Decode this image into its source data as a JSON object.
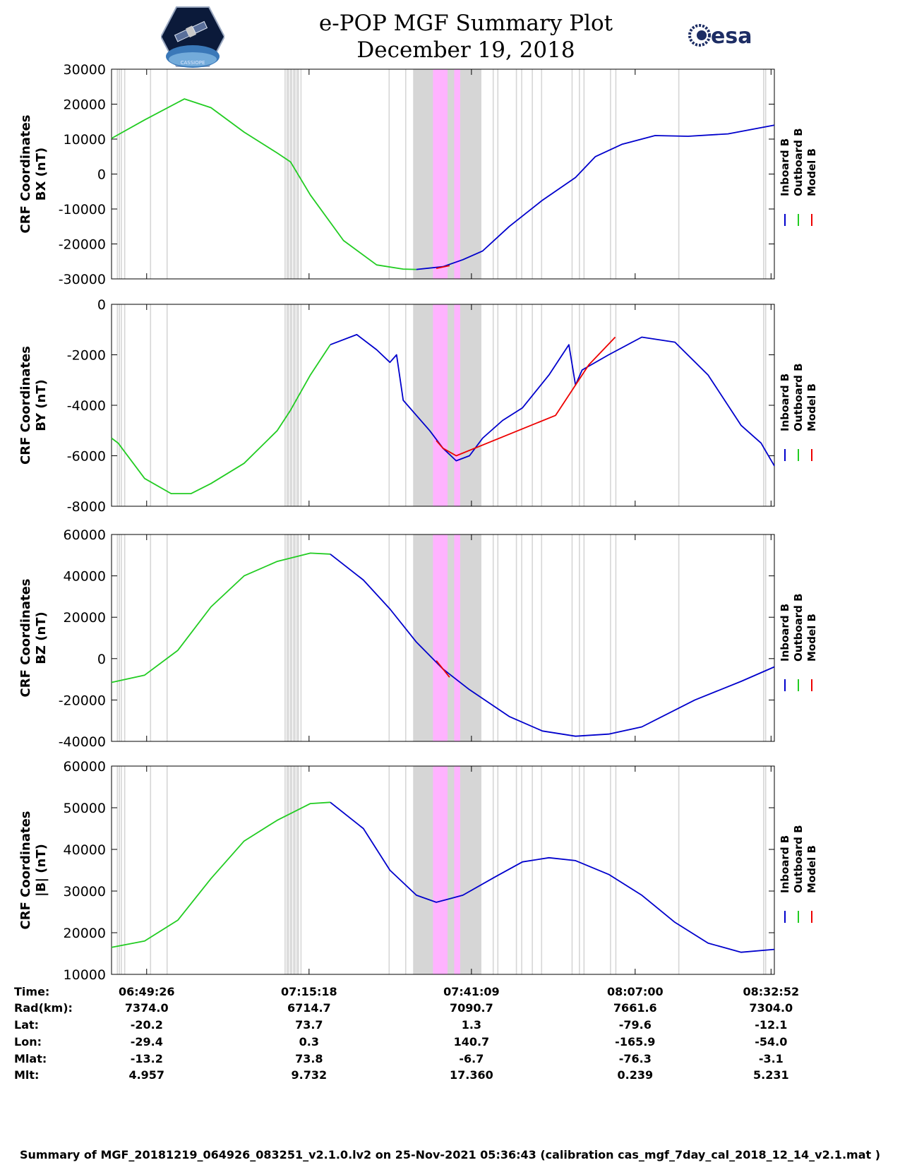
{
  "header": {
    "title_line1": "e-POP MGF Summary Plot",
    "title_line2": "December 19, 2018",
    "logo_left_text": "CASSIOPE",
    "logo_right_text": "esa"
  },
  "colors": {
    "inboard": "#0000cc",
    "outboard": "#22cc22",
    "model": "#ee0000",
    "gap_shade": "#d6d6d6",
    "event_shade": "#ffb3ff"
  },
  "legend": {
    "labels": [
      "Inboard B",
      "Outboard B",
      "Model B"
    ]
  },
  "chart_data": [
    {
      "type": "line",
      "title": "",
      "ylabel": [
        "CRF Coordinates",
        "BX (nT)"
      ],
      "ylim": [
        -30000,
        30000
      ],
      "yticks": [
        "30000",
        "20000",
        "10000",
        "0",
        "-10000",
        "-20000",
        "-30000"
      ],
      "series": [
        {
          "name": "Outboard B",
          "x": [
            0,
            0.05,
            0.11,
            0.15,
            0.2,
            0.25,
            0.27,
            0.3,
            0.35,
            0.4,
            0.44,
            0.46
          ],
          "values": [
            10200,
            15500,
            21500,
            19000,
            12000,
            6000,
            3500,
            -6000,
            -19000,
            -26000,
            -27200,
            -27300
          ]
        },
        {
          "name": "Inboard B",
          "x": [
            0.46,
            0.5,
            0.53,
            0.56,
            0.6,
            0.65,
            0.7,
            0.73,
            0.77,
            0.82,
            0.87,
            0.93,
            1.0
          ],
          "values": [
            -27300,
            -26500,
            -24500,
            -22000,
            -15000,
            -7500,
            -1000,
            5000,
            8500,
            11000,
            10800,
            11500,
            14000
          ]
        },
        {
          "name": "Model B",
          "x": [
            0.49,
            0.51
          ],
          "values": [
            -27000,
            -26200
          ]
        }
      ]
    },
    {
      "type": "line",
      "title": "",
      "ylabel": [
        "CRF Coordinates",
        "BY (nT)"
      ],
      "ylim": [
        -8000,
        0
      ],
      "yticks": [
        "0",
        "-2000",
        "-4000",
        "-6000",
        "-8000"
      ],
      "series": [
        {
          "name": "Outboard B",
          "x": [
            0,
            0.01,
            0.05,
            0.09,
            0.12,
            0.15,
            0.2,
            0.25,
            0.27,
            0.3,
            0.33
          ],
          "values": [
            -5300,
            -5500,
            -6900,
            -7500,
            -7500,
            -7100,
            -6300,
            -5000,
            -4200,
            -2800,
            -1600
          ]
        },
        {
          "name": "Inboard B",
          "x": [
            0.33,
            0.37,
            0.4,
            0.42,
            0.43,
            0.44,
            0.46,
            0.48,
            0.5,
            0.52,
            0.54,
            0.56,
            0.59,
            0.62,
            0.66,
            0.69,
            0.7,
            0.71,
            0.75,
            0.8,
            0.85,
            0.9,
            0.95,
            0.98,
            1.0
          ],
          "values": [
            -1600,
            -1200,
            -1800,
            -2300,
            -2000,
            -3800,
            -4400,
            -5000,
            -5700,
            -6200,
            -6000,
            -5300,
            -4600,
            -4100,
            -2800,
            -1600,
            -3200,
            -2600,
            -2000,
            -1300,
            -1500,
            -2800,
            -4800,
            -5500,
            -6400
          ]
        },
        {
          "name": "Model B",
          "x": [
            0.49,
            0.5,
            0.52,
            0.67,
            0.72,
            0.76
          ],
          "values": [
            -5400,
            -5700,
            -6000,
            -4400,
            -2400,
            -1300
          ]
        }
      ]
    },
    {
      "type": "line",
      "title": "",
      "ylabel": [
        "CRF Coordinates",
        "BZ (nT)"
      ],
      "ylim": [
        -40000,
        60000
      ],
      "yticks": [
        "60000",
        "40000",
        "20000",
        "0",
        "-20000",
        "-40000"
      ],
      "series": [
        {
          "name": "Outboard B",
          "x": [
            0,
            0.05,
            0.1,
            0.15,
            0.2,
            0.25,
            0.3,
            0.33
          ],
          "values": [
            -11500,
            -8000,
            4000,
            25000,
            40000,
            47000,
            51000,
            50500
          ]
        },
        {
          "name": "Inboard B",
          "x": [
            0.33,
            0.38,
            0.42,
            0.46,
            0.5,
            0.54,
            0.6,
            0.65,
            0.7,
            0.75,
            0.8,
            0.88,
            0.95,
            1.0
          ],
          "values": [
            50500,
            38000,
            24000,
            8000,
            -5000,
            -15000,
            -28000,
            -35000,
            -37500,
            -36500,
            -33000,
            -20000,
            -11000,
            -4000
          ]
        },
        {
          "name": "Model B",
          "x": [
            0.49,
            0.51
          ],
          "values": [
            -1000,
            -9000
          ]
        }
      ]
    },
    {
      "type": "line",
      "title": "",
      "ylabel": [
        "CRF Coordinates",
        "|B| (nT)"
      ],
      "ylim": [
        10000,
        60000
      ],
      "yticks": [
        "60000",
        "50000",
        "40000",
        "30000",
        "20000",
        "10000"
      ],
      "series": [
        {
          "name": "Outboard B",
          "x": [
            0,
            0.05,
            0.1,
            0.15,
            0.2,
            0.25,
            0.3,
            0.33
          ],
          "values": [
            16500,
            18000,
            23000,
            33000,
            42000,
            47000,
            51000,
            51300
          ]
        },
        {
          "name": "Inboard B",
          "x": [
            0.33,
            0.38,
            0.42,
            0.46,
            0.49,
            0.53,
            0.58,
            0.62,
            0.66,
            0.7,
            0.75,
            0.8,
            0.85,
            0.9,
            0.95,
            1.0
          ],
          "values": [
            51300,
            45000,
            35000,
            29000,
            27300,
            29000,
            33500,
            37000,
            38000,
            37300,
            34000,
            29000,
            22500,
            17500,
            15300,
            16000
          ]
        },
        {
          "name": "Model B",
          "x": [],
          "values": []
        }
      ]
    }
  ],
  "ephemeris": {
    "labels": [
      "Time:",
      "Rad(km):",
      "Lat:",
      "Lon:",
      "Mlat:",
      "Mlt:"
    ],
    "columns": [
      [
        "06:49:26",
        "7374.0",
        "-20.2",
        "-29.4",
        "-13.2",
        "4.957"
      ],
      [
        "07:15:18",
        "6714.7",
        "73.7",
        "0.3",
        "73.8",
        "9.732"
      ],
      [
        "07:41:09",
        "7090.7",
        "1.3",
        "140.7",
        "-6.7",
        "17.360"
      ],
      [
        "08:07:00",
        "7661.6",
        "-79.6",
        "-165.9",
        "-76.3",
        "0.239"
      ],
      [
        "08:32:52",
        "7304.0",
        "-12.1",
        "-54.0",
        "-3.1",
        "5.231"
      ]
    ]
  },
  "footer": {
    "text": "Summary of MGF_20181219_064926_083251_v2.1.0.lv2 on 25-Nov-2021 05:36:43 (calibration cas_mgf_7day_cal_2018_12_14_v2.1.mat )"
  }
}
